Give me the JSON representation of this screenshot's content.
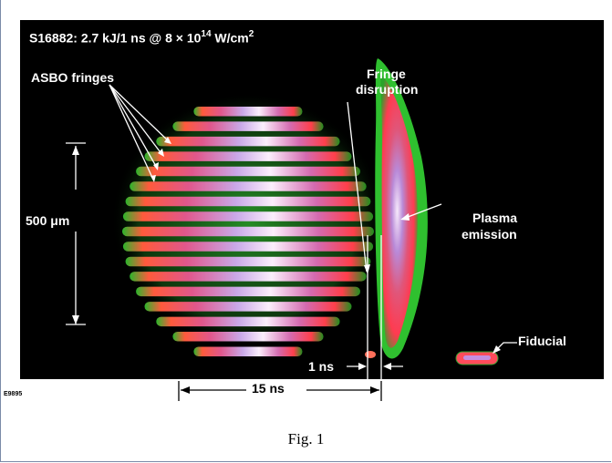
{
  "figure": {
    "title_main": "S16882:  2.7 kJ/1 ns @ 8 × 10",
    "title_exp": "14",
    "title_unit": " W/cm",
    "title_unit_exp": "2",
    "labels": {
      "asbo": "ASBO fringes",
      "fringe_line1": "Fringe",
      "fringe_line2": "disruption",
      "size": "500 μm",
      "plasma_line1": "Plasma",
      "plasma_line2": "emission",
      "fiducial": "Fiducial",
      "one_ns": "1 ns",
      "fifteen_ns": "15 ns"
    },
    "code": "E9895",
    "caption": "Fig. 1"
  },
  "colors": {
    "background": "#000000",
    "fringe_bright": "#ff4d6d",
    "fringe_core": "#f7d7f7",
    "fringe_mid": "#b86fd0",
    "green_halo": "#3cd23c",
    "annotation": "#ffffff",
    "frame": "#7a8aa8"
  }
}
